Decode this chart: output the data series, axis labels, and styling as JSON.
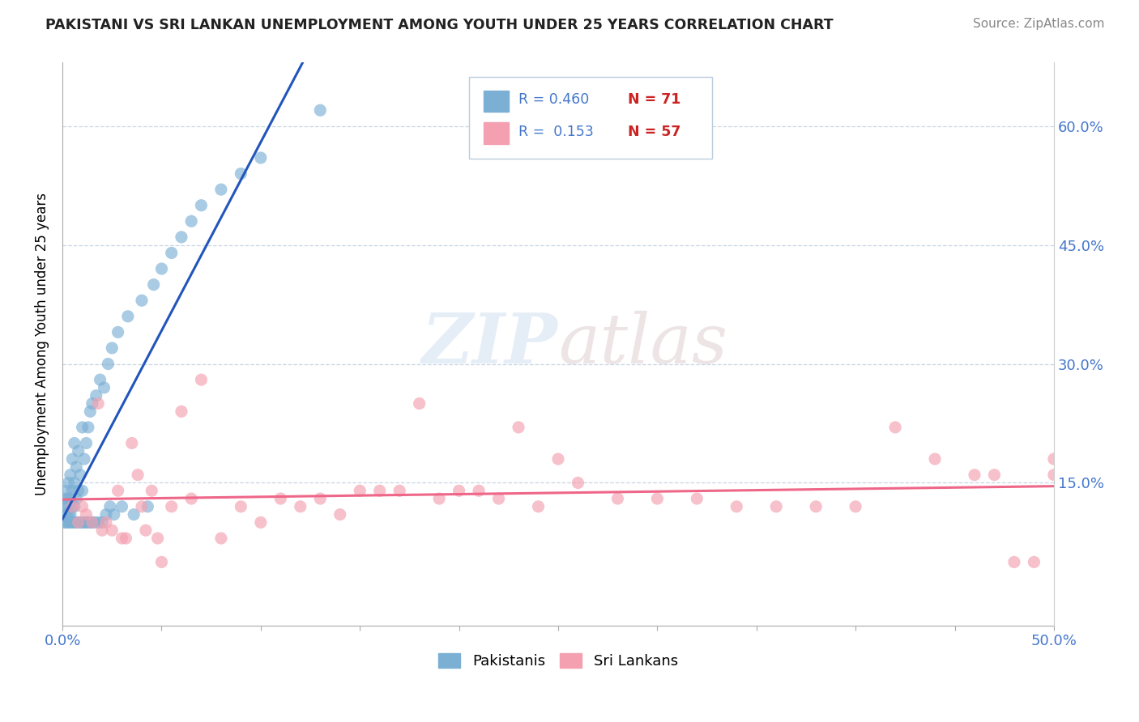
{
  "title": "PAKISTANI VS SRI LANKAN UNEMPLOYMENT AMONG YOUTH UNDER 25 YEARS CORRELATION CHART",
  "source": "Source: ZipAtlas.com",
  "ylabel": "Unemployment Among Youth under 25 years",
  "xmin": 0.0,
  "xmax": 0.5,
  "ymin": -0.03,
  "ymax": 0.68,
  "right_yticks": [
    0.0,
    0.15,
    0.3,
    0.45,
    0.6
  ],
  "right_yticklabels": [
    "",
    "15.0%",
    "30.0%",
    "45.0%",
    "60.0%"
  ],
  "legend_r1": "R = 0.460",
  "legend_n1": "N = 71",
  "legend_r2": "R =  0.153",
  "legend_n2": "N = 57",
  "pakistani_color": "#7BAFD4",
  "srilanka_color": "#F4A0B0",
  "pakistani_trend_color": "#2255BB",
  "srilanka_trend_color": "#EE6688",
  "watermark_zip": "ZIP",
  "watermark_atlas": "atlas",
  "pakistani_x": [
    0.001,
    0.001,
    0.001,
    0.002,
    0.002,
    0.002,
    0.002,
    0.003,
    0.003,
    0.003,
    0.003,
    0.004,
    0.004,
    0.004,
    0.004,
    0.005,
    0.005,
    0.005,
    0.005,
    0.006,
    0.006,
    0.006,
    0.006,
    0.007,
    0.007,
    0.007,
    0.008,
    0.008,
    0.008,
    0.009,
    0.009,
    0.01,
    0.01,
    0.01,
    0.011,
    0.011,
    0.012,
    0.012,
    0.013,
    0.013,
    0.014,
    0.014,
    0.015,
    0.015,
    0.016,
    0.017,
    0.018,
    0.019,
    0.02,
    0.021,
    0.022,
    0.023,
    0.024,
    0.025,
    0.026,
    0.028,
    0.03,
    0.033,
    0.036,
    0.04,
    0.043,
    0.046,
    0.05,
    0.055,
    0.06,
    0.065,
    0.07,
    0.08,
    0.09,
    0.1,
    0.13
  ],
  "pakistani_y": [
    0.1,
    0.12,
    0.13,
    0.1,
    0.11,
    0.12,
    0.14,
    0.1,
    0.11,
    0.13,
    0.15,
    0.1,
    0.11,
    0.13,
    0.16,
    0.1,
    0.12,
    0.14,
    0.18,
    0.1,
    0.12,
    0.15,
    0.2,
    0.1,
    0.13,
    0.17,
    0.1,
    0.14,
    0.19,
    0.1,
    0.16,
    0.1,
    0.14,
    0.22,
    0.1,
    0.18,
    0.1,
    0.2,
    0.1,
    0.22,
    0.1,
    0.24,
    0.1,
    0.25,
    0.1,
    0.26,
    0.1,
    0.28,
    0.1,
    0.27,
    0.11,
    0.3,
    0.12,
    0.32,
    0.11,
    0.34,
    0.12,
    0.36,
    0.11,
    0.38,
    0.12,
    0.4,
    0.42,
    0.44,
    0.46,
    0.48,
    0.5,
    0.52,
    0.54,
    0.56,
    0.62
  ],
  "srilanka_x": [
    0.005,
    0.008,
    0.01,
    0.012,
    0.015,
    0.018,
    0.02,
    0.022,
    0.025,
    0.028,
    0.03,
    0.032,
    0.035,
    0.038,
    0.04,
    0.042,
    0.045,
    0.048,
    0.05,
    0.055,
    0.06,
    0.065,
    0.07,
    0.08,
    0.09,
    0.1,
    0.11,
    0.12,
    0.13,
    0.14,
    0.15,
    0.16,
    0.17,
    0.18,
    0.19,
    0.2,
    0.21,
    0.22,
    0.23,
    0.24,
    0.25,
    0.26,
    0.28,
    0.3,
    0.32,
    0.34,
    0.36,
    0.38,
    0.4,
    0.42,
    0.44,
    0.46,
    0.47,
    0.48,
    0.49,
    0.5,
    0.5
  ],
  "srilanka_y": [
    0.12,
    0.1,
    0.12,
    0.11,
    0.1,
    0.25,
    0.09,
    0.1,
    0.09,
    0.14,
    0.08,
    0.08,
    0.2,
    0.16,
    0.12,
    0.09,
    0.14,
    0.08,
    0.05,
    0.12,
    0.24,
    0.13,
    0.28,
    0.08,
    0.12,
    0.1,
    0.13,
    0.12,
    0.13,
    0.11,
    0.14,
    0.14,
    0.14,
    0.25,
    0.13,
    0.14,
    0.14,
    0.13,
    0.22,
    0.12,
    0.18,
    0.15,
    0.13,
    0.13,
    0.13,
    0.12,
    0.12,
    0.12,
    0.12,
    0.22,
    0.18,
    0.16,
    0.16,
    0.05,
    0.05,
    0.18,
    0.16
  ]
}
